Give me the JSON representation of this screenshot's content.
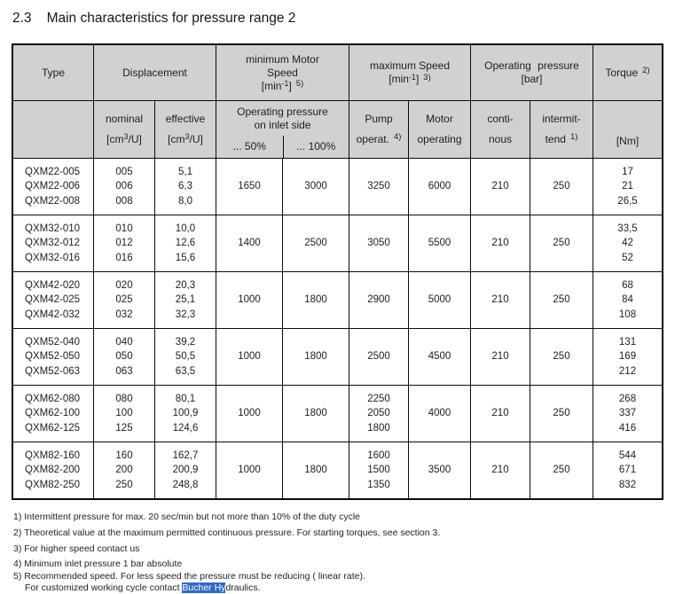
{
  "colors": {
    "header_bg": "#d1d1d1",
    "border": "#0a0a0a",
    "selection_bg": "#316ac5",
    "selection_text": "#ffffff"
  },
  "title": {
    "number": "2.3",
    "text": "Main characteristics for pressure range 2"
  },
  "table": {
    "header": {
      "type": "Type",
      "displacement": "Displacement",
      "min_speed": {
        "l1": "minimum Motor",
        "l2": "Speed",
        "unit_pre": "[min",
        "unit_sup": "-1",
        "unit_post": "]",
        "fn": "5)"
      },
      "max_speed": {
        "l1": "maximum Speed",
        "unit_pre": "[min",
        "unit_sup": "-1",
        "unit_post": "]",
        "fn": "3)"
      },
      "op_pressure": {
        "l1": "Operating pressure",
        "unit": "[bar]"
      },
      "torque": {
        "label": "Torque",
        "fn": "2)"
      },
      "nominal": {
        "label": "nominal",
        "unit_pre": "[cm",
        "unit_sup": "3",
        "unit_post": "/U]"
      },
      "effective": {
        "label": "effective",
        "unit_pre": "[cm",
        "unit_sup": "3",
        "unit_post": "/U]"
      },
      "inlet": {
        "l1": "Operating pressure",
        "l2": "on inlet side",
        "p50": "... 50%",
        "p100": "... 100%"
      },
      "pump": {
        "l1": "Pump",
        "l2": "operat.",
        "fn": "4)"
      },
      "motor": {
        "l1": "Motor",
        "l2": "operating"
      },
      "conti": {
        "l1": "conti-",
        "l2": "nous"
      },
      "intermit": {
        "l1": "intermit-",
        "l2": "tend",
        "fn": "1)"
      },
      "nm": "[Nm]"
    },
    "groups": [
      {
        "types": [
          "QXM22-005",
          "QXM22-006",
          "QXM22-008"
        ],
        "nominal": [
          "005",
          "006",
          "008"
        ],
        "effective": [
          "5,1",
          "6,3",
          "8,0"
        ],
        "min50": "1650",
        "min100": "3000",
        "pump": [
          "3250"
        ],
        "motor": "6000",
        "conti": "210",
        "intermit": "250",
        "torque": [
          "17",
          "21",
          "26,5"
        ]
      },
      {
        "types": [
          "QXM32-010",
          "QXM32-012",
          "QXM32-016"
        ],
        "nominal": [
          "010",
          "012",
          "016"
        ],
        "effective": [
          "10,0",
          "12,6",
          "15,6"
        ],
        "min50": "1400",
        "min100": "2500",
        "pump": [
          "3050"
        ],
        "motor": "5500",
        "conti": "210",
        "intermit": "250",
        "torque": [
          "33,5",
          "42",
          "52"
        ]
      },
      {
        "types": [
          "QXM42-020",
          "QXM42-025",
          "QXM42-032"
        ],
        "nominal": [
          "020",
          "025",
          "032"
        ],
        "effective": [
          "20,3",
          "25,1",
          "32,3"
        ],
        "min50": "1000",
        "min100": "1800",
        "pump": [
          "2900"
        ],
        "motor": "5000",
        "conti": "210",
        "intermit": "250",
        "torque": [
          "68",
          "84",
          "108"
        ]
      },
      {
        "types": [
          "QXM52-040",
          "QXM52-050",
          "QXM52-063"
        ],
        "nominal": [
          "040",
          "050",
          "063"
        ],
        "effective": [
          "39,2",
          "50,5",
          "63,5"
        ],
        "min50": "1000",
        "min100": "1800",
        "pump": [
          "2500"
        ],
        "motor": "4500",
        "conti": "210",
        "intermit": "250",
        "torque": [
          "131",
          "169",
          "212"
        ]
      },
      {
        "types": [
          "QXM62-080",
          "QXM62-100",
          "QXM62-125"
        ],
        "nominal": [
          "080",
          "100",
          "125"
        ],
        "effective": [
          "80,1",
          "100,9",
          "124,6"
        ],
        "min50": "1000",
        "min100": "1800",
        "pump": [
          "2250",
          "2050",
          "1800"
        ],
        "motor": "4000",
        "conti": "210",
        "intermit": "250",
        "torque": [
          "268",
          "337",
          "416"
        ]
      },
      {
        "types": [
          "QXM82-160",
          "QXM82-200",
          "QXM82-250"
        ],
        "nominal": [
          "160",
          "200",
          "250"
        ],
        "effective": [
          "162,7",
          "200,9",
          "248,8"
        ],
        "min50": "1000",
        "min100": "1800",
        "pump": [
          "1600",
          "1500",
          "1350"
        ],
        "motor": "3500",
        "conti": "210",
        "intermit": "250",
        "torque": [
          "544",
          "671",
          "832"
        ]
      }
    ]
  },
  "footnotes": [
    "1) Intermittent pressure for max. 20 sec/min but not more than 10% of the duty cycle",
    "2) Theoretical value at the maximum permitted continuous pressure. For starting torques, see section 3.",
    "3) For higher speed contact us",
    "4) Minimum inlet pressure 1 bar absolute",
    "5) Recommended speed. For less speed the pressure must be reducing ( linear rate)."
  ],
  "footnote_continuation": {
    "pre": "For customized working cycle contact ",
    "highlight": "Bucher Hy",
    "post": "draulics."
  }
}
